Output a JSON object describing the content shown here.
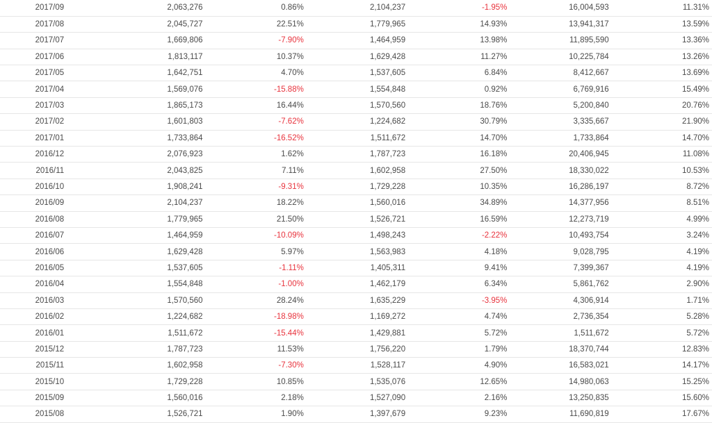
{
  "colors": {
    "negative": "#e8323c",
    "text": "#4a4a4a",
    "row_border": "#e6e6e6"
  },
  "rows": [
    [
      "2017/09",
      "2,063,276",
      "0.86%",
      "2,104,237",
      "-1.95%",
      "16,004,593",
      "11.31%"
    ],
    [
      "2017/08",
      "2,045,727",
      "22.51%",
      "1,779,965",
      "14.93%",
      "13,941,317",
      "13.59%"
    ],
    [
      "2017/07",
      "1,669,806",
      "-7.90%",
      "1,464,959",
      "13.98%",
      "11,895,590",
      "13.36%"
    ],
    [
      "2017/06",
      "1,813,117",
      "10.37%",
      "1,629,428",
      "11.27%",
      "10,225,784",
      "13.26%"
    ],
    [
      "2017/05",
      "1,642,751",
      "4.70%",
      "1,537,605",
      "6.84%",
      "8,412,667",
      "13.69%"
    ],
    [
      "2017/04",
      "1,569,076",
      "-15.88%",
      "1,554,848",
      "0.92%",
      "6,769,916",
      "15.49%"
    ],
    [
      "2017/03",
      "1,865,173",
      "16.44%",
      "1,570,560",
      "18.76%",
      "5,200,840",
      "20.76%"
    ],
    [
      "2017/02",
      "1,601,803",
      "-7.62%",
      "1,224,682",
      "30.79%",
      "3,335,667",
      "21.90%"
    ],
    [
      "2017/01",
      "1,733,864",
      "-16.52%",
      "1,511,672",
      "14.70%",
      "1,733,864",
      "14.70%"
    ],
    [
      "2016/12",
      "2,076,923",
      "1.62%",
      "1,787,723",
      "16.18%",
      "20,406,945",
      "11.08%"
    ],
    [
      "2016/11",
      "2,043,825",
      "7.11%",
      "1,602,958",
      "27.50%",
      "18,330,022",
      "10.53%"
    ],
    [
      "2016/10",
      "1,908,241",
      "-9.31%",
      "1,729,228",
      "10.35%",
      "16,286,197",
      "8.72%"
    ],
    [
      "2016/09",
      "2,104,237",
      "18.22%",
      "1,560,016",
      "34.89%",
      "14,377,956",
      "8.51%"
    ],
    [
      "2016/08",
      "1,779,965",
      "21.50%",
      "1,526,721",
      "16.59%",
      "12,273,719",
      "4.99%"
    ],
    [
      "2016/07",
      "1,464,959",
      "-10.09%",
      "1,498,243",
      "-2.22%",
      "10,493,754",
      "3.24%"
    ],
    [
      "2016/06",
      "1,629,428",
      "5.97%",
      "1,563,983",
      "4.18%",
      "9,028,795",
      "4.19%"
    ],
    [
      "2016/05",
      "1,537,605",
      "-1.11%",
      "1,405,311",
      "9.41%",
      "7,399,367",
      "4.19%"
    ],
    [
      "2016/04",
      "1,554,848",
      "-1.00%",
      "1,462,179",
      "6.34%",
      "5,861,762",
      "2.90%"
    ],
    [
      "2016/03",
      "1,570,560",
      "28.24%",
      "1,635,229",
      "-3.95%",
      "4,306,914",
      "1.71%"
    ],
    [
      "2016/02",
      "1,224,682",
      "-18.98%",
      "1,169,272",
      "4.74%",
      "2,736,354",
      "5.28%"
    ],
    [
      "2016/01",
      "1,511,672",
      "-15.44%",
      "1,429,881",
      "5.72%",
      "1,511,672",
      "5.72%"
    ],
    [
      "2015/12",
      "1,787,723",
      "11.53%",
      "1,756,220",
      "1.79%",
      "18,370,744",
      "12.83%"
    ],
    [
      "2015/11",
      "1,602,958",
      "-7.30%",
      "1,528,117",
      "4.90%",
      "16,583,021",
      "14.17%"
    ],
    [
      "2015/10",
      "1,729,228",
      "10.85%",
      "1,535,076",
      "12.65%",
      "14,980,063",
      "15.25%"
    ],
    [
      "2015/09",
      "1,560,016",
      "2.18%",
      "1,527,090",
      "2.16%",
      "13,250,835",
      "15.60%"
    ],
    [
      "2015/08",
      "1,526,721",
      "1.90%",
      "1,397,679",
      "9.23%",
      "11,690,819",
      "17.67%"
    ]
  ]
}
